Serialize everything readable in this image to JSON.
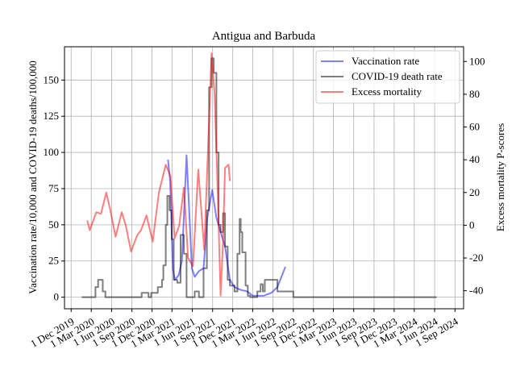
{
  "chart_data": {
    "type": "line",
    "title": "Antigua and Barbuda",
    "ylabel": "Vaccination rate/10,000 and COVID-19 deaths/100,000",
    "y2label": "Excess mortality P-scores",
    "xlim": [
      "2019-11-01",
      "2024-10-10"
    ],
    "xticks": [
      {
        "value": "2019-12-01",
        "label": "1 Dec 2019"
      },
      {
        "value": "2020-03-01",
        "label": "1 Mar 2020"
      },
      {
        "value": "2020-06-01",
        "label": "1 Jun 2020"
      },
      {
        "value": "2020-09-01",
        "label": "1 Sep 2020"
      },
      {
        "value": "2020-12-01",
        "label": "1 Dec 2020"
      },
      {
        "value": "2021-03-01",
        "label": "1 Mar 2021"
      },
      {
        "value": "2021-06-01",
        "label": "1 Jun 2021"
      },
      {
        "value": "2021-09-01",
        "label": "1 Sep 2021"
      },
      {
        "value": "2021-12-01",
        "label": "1 Dec 2021"
      },
      {
        "value": "2022-03-01",
        "label": "1 Mar 2022"
      },
      {
        "value": "2022-06-01",
        "label": "1 Jun 2022"
      },
      {
        "value": "2022-09-01",
        "label": "1 Sep 2022"
      },
      {
        "value": "2022-12-01",
        "label": "1 Dec 2022"
      },
      {
        "value": "2023-03-01",
        "label": "1 Mar 2023"
      },
      {
        "value": "2023-06-01",
        "label": "1 Jun 2023"
      },
      {
        "value": "2023-09-01",
        "label": "1 Sep 2023"
      },
      {
        "value": "2023-12-01",
        "label": "1 Dec 2023"
      },
      {
        "value": "2024-03-01",
        "label": "1 Mar 2024"
      },
      {
        "value": "2024-06-01",
        "label": "1 Jun 2024"
      },
      {
        "value": "2024-09-01",
        "label": "1 Sep 2024"
      }
    ],
    "ylim": [
      -8,
      173
    ],
    "yticks": [
      0,
      25,
      50,
      75,
      100,
      125,
      150
    ],
    "y2lim": [
      -51,
      109
    ],
    "y2ticks": [
      -40,
      -20,
      0,
      20,
      40,
      60,
      80,
      100
    ],
    "grid": true,
    "legend": "upper right",
    "series": [
      {
        "name": "Vaccination rate",
        "color": "#0000ff",
        "alpha": 0.5,
        "x": [
          "2021-02-11",
          "2021-02-21",
          "2021-03-05",
          "2021-03-14",
          "2021-03-31",
          "2021-04-15",
          "2021-05-06",
          "2021-05-18",
          "2021-05-30",
          "2021-06-12",
          "2021-07-01",
          "2021-07-22",
          "2021-08-08",
          "2021-08-30",
          "2021-09-18",
          "2021-10-07",
          "2021-10-27",
          "2021-11-18",
          "2021-12-09",
          "2022-01-06",
          "2022-02-04",
          "2022-03-01",
          "2022-04-20",
          "2022-05-25",
          "2022-06-21",
          "2022-07-27"
        ],
        "values": [
          95,
          80,
          20,
          12,
          15,
          25,
          98,
          60,
          20,
          14,
          18,
          20,
          55,
          74,
          55,
          45,
          35,
          12,
          7,
          5,
          4,
          1,
          1,
          3,
          7,
          21
        ]
      },
      {
        "name": "COVID-19 death rate",
        "color": "#000000",
        "alpha": 0.5,
        "drawstyle": "steps-post",
        "x": [
          "2020-01-18",
          "2020-03-20",
          "2020-04-01",
          "2020-04-22",
          "2020-05-04",
          "2020-10-15",
          "2020-11-15",
          "2020-11-27",
          "2020-12-27",
          "2021-01-15",
          "2021-01-21",
          "2021-02-01",
          "2021-02-08",
          "2021-02-18",
          "2021-02-28",
          "2021-03-09",
          "2021-03-25",
          "2021-04-09",
          "2021-04-24",
          "2021-05-06",
          "2021-06-12",
          "2021-07-01",
          "2021-07-22",
          "2021-08-06",
          "2021-08-16",
          "2021-08-27",
          "2021-09-06",
          "2021-09-18",
          "2021-09-28",
          "2021-10-07",
          "2021-10-18",
          "2021-10-27",
          "2021-11-08",
          "2021-11-18",
          "2021-12-09",
          "2021-12-22",
          "2022-01-01",
          "2022-01-06",
          "2022-01-13",
          "2022-01-28",
          "2022-02-07",
          "2022-02-18",
          "2022-03-22",
          "2022-04-06",
          "2022-04-16",
          "2022-04-25",
          "2022-06-21",
          "2022-09-01",
          "2024-06-10"
        ],
        "values": [
          0,
          7,
          12,
          4,
          0,
          3,
          0,
          3,
          7,
          12,
          22,
          50,
          70,
          60,
          40,
          12,
          10,
          43,
          30,
          0,
          4,
          0,
          20,
          60,
          145,
          165,
          155,
          100,
          50,
          45,
          58,
          35,
          12,
          8,
          4,
          30,
          54,
          45,
          31,
          8,
          1,
          0,
          4,
          9,
          4,
          12,
          4,
          0,
          0
        ]
      },
      {
        "name": "Excess mortality",
        "color": "#ff0000",
        "alpha": 0.5,
        "axis": "y2",
        "x": [
          "2020-02-12",
          "2020-02-23",
          "2020-03-24",
          "2020-04-14",
          "2020-05-08",
          "2020-05-25",
          "2020-06-19",
          "2020-07-17",
          "2020-08-04",
          "2020-08-28",
          "2020-09-25",
          "2020-10-12",
          "2020-11-06",
          "2020-12-04",
          "2021-01-01",
          "2021-02-01",
          "2021-02-22",
          "2021-03-13",
          "2021-04-03",
          "2021-04-24",
          "2021-05-13",
          "2021-06-04",
          "2021-06-28",
          "2021-07-25",
          "2021-08-12",
          "2021-08-27",
          "2021-09-10",
          "2021-09-24",
          "2021-10-07",
          "2021-10-18",
          "2021-10-27",
          "2021-11-12",
          "2021-11-18"
        ],
        "values": [
          3,
          -3,
          8,
          7,
          20,
          10,
          -7,
          8,
          0,
          -16,
          -6,
          -3,
          6,
          -10,
          20,
          37,
          30,
          -8,
          0,
          23,
          -20,
          -25,
          34,
          -15,
          50,
          105,
          80,
          20,
          -43,
          -10,
          35,
          37,
          27
        ]
      }
    ]
  }
}
